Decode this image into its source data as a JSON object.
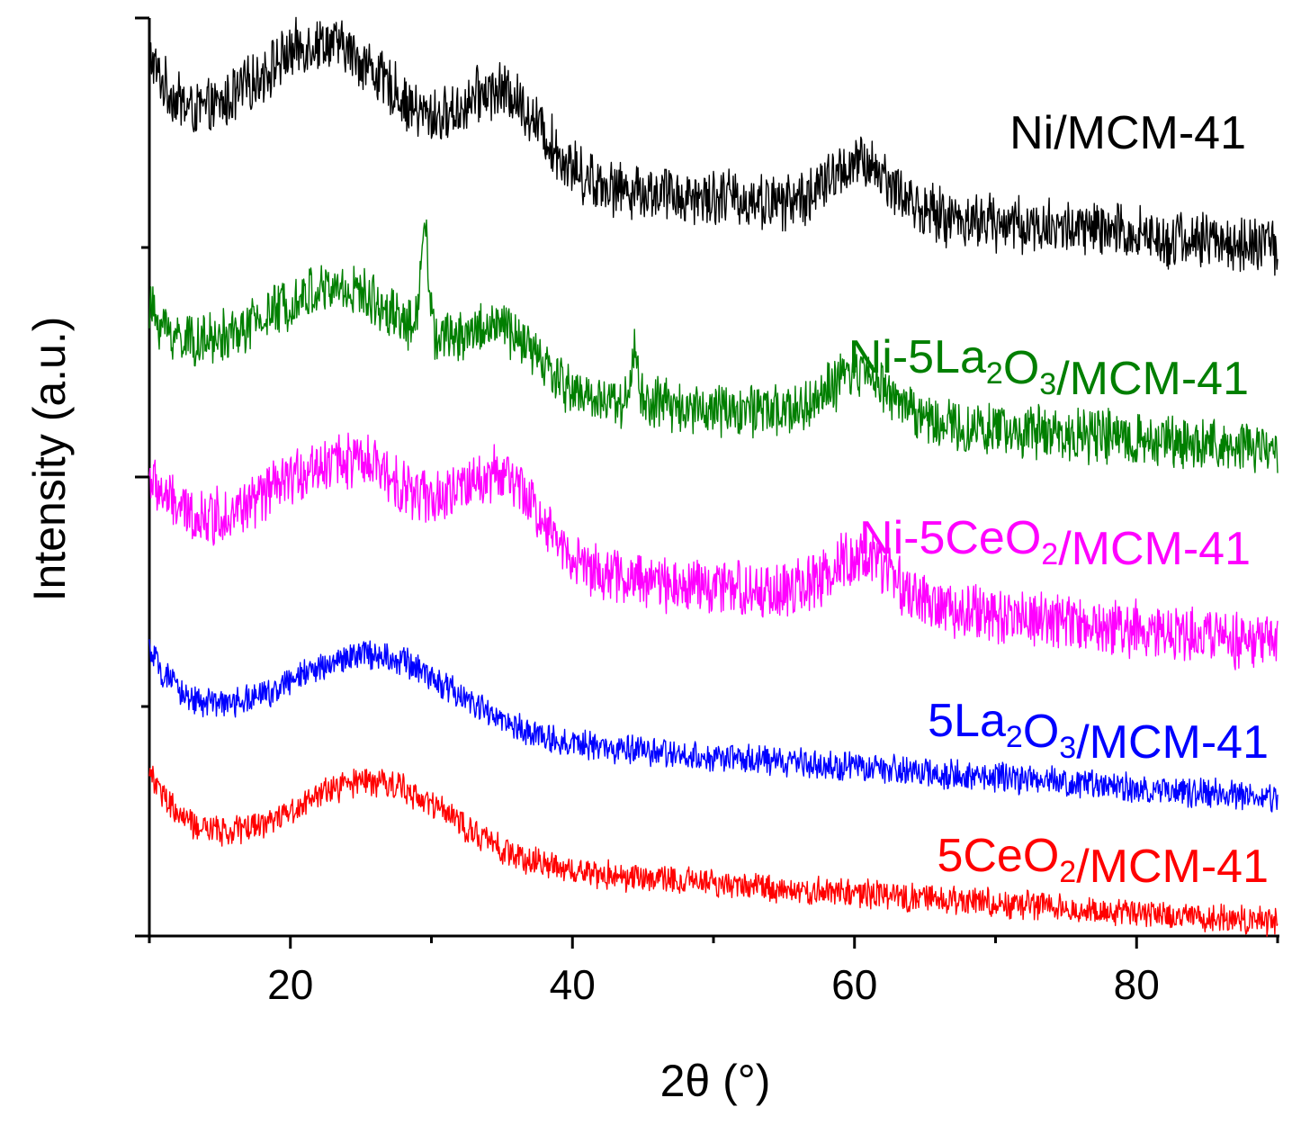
{
  "chart_data": {
    "type": "line",
    "title": "",
    "xlabel": "2θ (°)",
    "ylabel": "Intensity (a.u.)",
    "xlim": [
      10,
      90
    ],
    "ylim": [
      0,
      1
    ],
    "x_ticks_major": [
      20,
      40,
      60,
      80
    ],
    "x_tick_labels": [
      "20",
      "40",
      "60",
      "80"
    ],
    "x_ticks_minor": [
      10,
      30,
      50,
      70,
      90
    ],
    "y_ticks": [
      0,
      0.25,
      0.5,
      0.75,
      1.0
    ],
    "y_tick_labels_visible": false,
    "grid": false,
    "legend": "inline labels at right end of each trace",
    "series": [
      {
        "key": "ni_mcm41",
        "name": "Ni/MCM-41",
        "label_main": "Ni/MCM-41",
        "color": "#000000",
        "baseline": 0.84,
        "noise": 0.035,
        "features": [
          {
            "type": "offset_start",
            "value": 0.095
          },
          {
            "type": "broad_peak",
            "center": 22.5,
            "width": 5.0,
            "height": 0.13
          },
          {
            "type": "broad_peak",
            "center": 35.0,
            "width": 2.8,
            "height": 0.09
          },
          {
            "type": "broad_peak",
            "center": 60.5,
            "width": 2.2,
            "height": 0.05
          },
          {
            "type": "slope",
            "start": 0.02,
            "end": -0.09
          }
        ]
      },
      {
        "key": "ni_la2o3_mcm41",
        "name": "Ni-5La2O3/MCM-41",
        "label_parts": [
          {
            "t": "Ni-5La"
          },
          {
            "t": "2",
            "sub": true
          },
          {
            "t": "O"
          },
          {
            "t": "3",
            "sub": true
          },
          {
            "t": "/MCM-41"
          }
        ],
        "color": "#007f00",
        "baseline": 0.6,
        "noise": 0.033,
        "features": [
          {
            "type": "offset_start",
            "value": 0.06
          },
          {
            "type": "broad_peak",
            "center": 23.5,
            "width": 5.5,
            "height": 0.1
          },
          {
            "type": "sharp_peak",
            "center": 29.5,
            "width": 0.25,
            "height": 0.13
          },
          {
            "type": "broad_peak",
            "center": 35.0,
            "width": 2.5,
            "height": 0.06
          },
          {
            "type": "sharp_peak",
            "center": 44.4,
            "width": 0.25,
            "height": 0.05
          },
          {
            "type": "broad_peak",
            "center": 60.5,
            "width": 2.2,
            "height": 0.05
          },
          {
            "type": "slope",
            "start": 0.02,
            "end": -0.07
          }
        ]
      },
      {
        "key": "ni_ceo2_mcm41",
        "name": "Ni-5CeO2/MCM-41",
        "label_parts": [
          {
            "t": "Ni-5CeO"
          },
          {
            "t": "2",
            "sub": true
          },
          {
            "t": "/MCM-41"
          }
        ],
        "color": "#ff00ff",
        "baseline": 0.4,
        "noise": 0.035,
        "features": [
          {
            "type": "offset_start",
            "value": 0.06
          },
          {
            "type": "broad_peak",
            "center": 24.0,
            "width": 5.0,
            "height": 0.1
          },
          {
            "type": "broad_peak",
            "center": 35.0,
            "width": 2.8,
            "height": 0.09
          },
          {
            "type": "broad_peak",
            "center": 60.5,
            "width": 2.2,
            "height": 0.05
          },
          {
            "type": "slope",
            "start": 0.04,
            "end": -0.08
          }
        ]
      },
      {
        "key": "la2o3_mcm41",
        "name": "5La2O3/MCM-41",
        "label_parts": [
          {
            "t": "5La"
          },
          {
            "t": "2",
            "sub": true
          },
          {
            "t": "O"
          },
          {
            "t": "3",
            "sub": true
          },
          {
            "t": "/MCM-41"
          }
        ],
        "color": "#0000ff",
        "baseline": 0.2,
        "noise": 0.018,
        "features": [
          {
            "type": "offset_start",
            "value": 0.07
          },
          {
            "type": "broad_peak",
            "center": 26.0,
            "width": 5.5,
            "height": 0.085
          },
          {
            "type": "slope",
            "start": 0.04,
            "end": -0.05
          }
        ]
      },
      {
        "key": "ceo2_mcm41",
        "name": "5CeO2/MCM-41",
        "label_parts": [
          {
            "t": "5CeO"
          },
          {
            "t": "2",
            "sub": true
          },
          {
            "t": "/MCM-41"
          }
        ],
        "color": "#ff0000",
        "baseline": 0.07,
        "noise": 0.018,
        "features": [
          {
            "type": "offset_start",
            "value": 0.08
          },
          {
            "type": "broad_peak",
            "center": 26.0,
            "width": 5.5,
            "height": 0.085
          },
          {
            "type": "slope",
            "start": 0.03,
            "end": -0.055
          }
        ]
      }
    ]
  }
}
